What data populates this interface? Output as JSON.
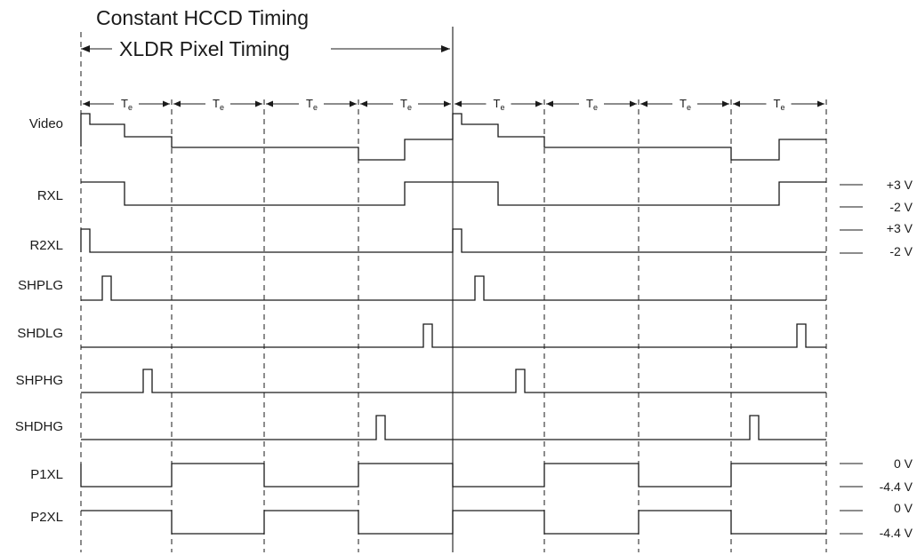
{
  "header": {
    "title": "Constant HCCD Timing",
    "subtitle": "XLDR Pixel Timing"
  },
  "period_label": {
    "main": "T",
    "sub": "e"
  },
  "signals": [
    {
      "name": "Video"
    },
    {
      "name": "RXL"
    },
    {
      "name": "R2XL"
    },
    {
      "name": "SHPLG"
    },
    {
      "name": "SHDLG"
    },
    {
      "name": "SHPHG"
    },
    {
      "name": "SHDHG"
    },
    {
      "name": "P1XL"
    },
    {
      "name": "P2XL"
    }
  ],
  "voltages": [
    {
      "signal": "RXL",
      "high": "+3 V",
      "low": "-2 V"
    },
    {
      "signal": "R2XL",
      "high": "+3 V",
      "low": "-2 V"
    },
    {
      "signal": "P1XL",
      "high": "0 V",
      "low": "-4.4 V"
    },
    {
      "signal": "P2XL",
      "high": "0 V",
      "low": "-4.4 V"
    }
  ]
}
